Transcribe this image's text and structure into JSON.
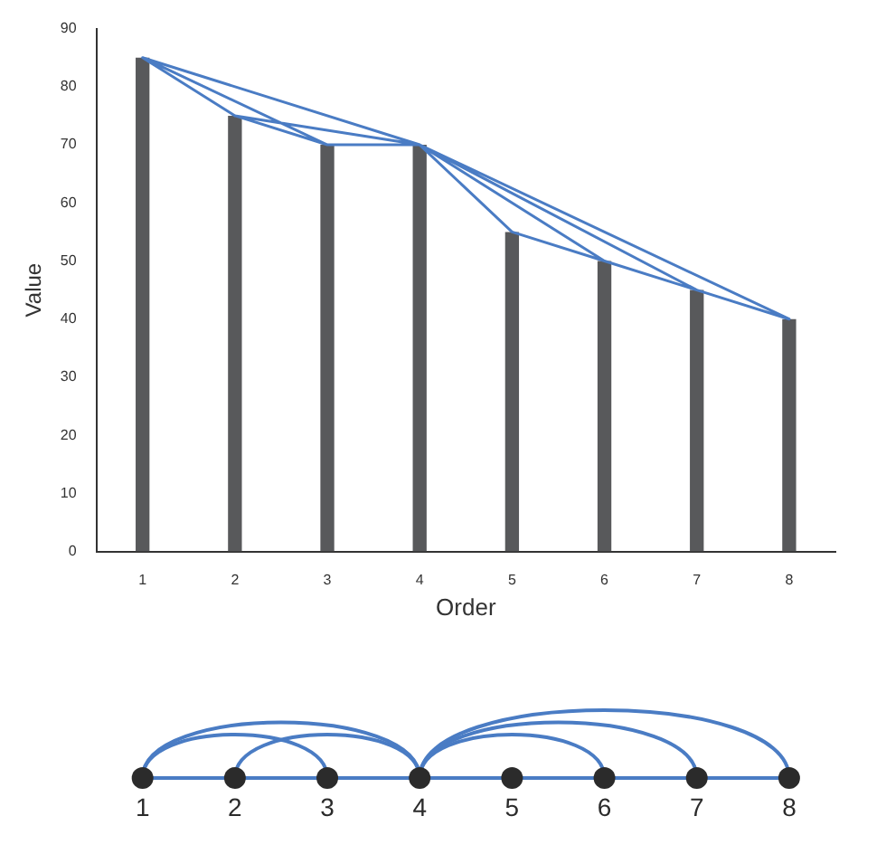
{
  "chart_data": {
    "type": "bar",
    "xlabel": "Order",
    "ylabel": "Value",
    "categories": [
      "1",
      "2",
      "3",
      "4",
      "5",
      "6",
      "7",
      "8"
    ],
    "ylim": [
      0,
      90
    ],
    "yticks": [
      0,
      10,
      20,
      30,
      40,
      50,
      60,
      70,
      80,
      90
    ],
    "grid": false,
    "legend": false,
    "marker": "none",
    "series": [
      {
        "color": "#58595b",
        "values": [
          85,
          75,
          70,
          70,
          55,
          50,
          45,
          40
        ]
      },
      {
        "type": "line",
        "color": "#4a7cc4",
        "x": [
          "1",
          "2",
          "4",
          "1",
          "3",
          "2",
          "2",
          "3",
          "4",
          "5",
          "6",
          "4",
          "7",
          "6",
          "6",
          "4",
          "8",
          "7"
        ],
        "values": [
          85,
          75,
          70,
          85,
          70,
          75,
          null,
          70,
          70,
          55,
          50,
          70,
          45,
          50,
          null,
          70,
          40,
          45
        ]
      }
    ]
  }
}
